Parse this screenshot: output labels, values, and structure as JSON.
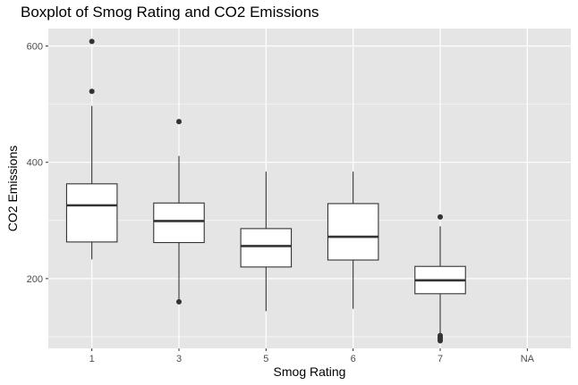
{
  "chart_data": {
    "type": "boxplot",
    "title": "Boxplot of Smog Rating and CO2 Emissions",
    "xlabel": "Smog Rating",
    "ylabel": "CO2 Emissions",
    "categories": [
      "1",
      "3",
      "5",
      "6",
      "7",
      "NA"
    ],
    "y_ticks": [
      200,
      400,
      600
    ],
    "ylim": [
      80,
      630
    ],
    "grid": true,
    "panel_background": "#e5e5e5",
    "gridline_color": "#ffffff",
    "box_fill": "#ffffff",
    "box_stroke": "#333333",
    "point_color": "#333333",
    "boxes": [
      {
        "category": "1",
        "whisker_low": 233,
        "q1": 263,
        "median": 326,
        "q3": 363,
        "whisker_high": 497,
        "outliers": [
          522,
          608
        ]
      },
      {
        "category": "3",
        "whisker_low": 160,
        "q1": 262,
        "median": 299,
        "q3": 330,
        "whisker_high": 411,
        "outliers": [
          160,
          470
        ]
      },
      {
        "category": "5",
        "whisker_low": 144,
        "q1": 220,
        "median": 256,
        "q3": 286,
        "whisker_high": 384,
        "outliers": []
      },
      {
        "category": "6",
        "whisker_low": 148,
        "q1": 232,
        "median": 272,
        "q3": 329,
        "whisker_high": 384,
        "outliers": []
      },
      {
        "category": "7",
        "whisker_low": 104,
        "q1": 174,
        "median": 197,
        "q3": 221,
        "whisker_high": 290,
        "outliers": [
          306,
          93,
          96,
          99,
          102
        ]
      },
      {
        "category": "NA",
        "whisker_low": null,
        "q1": null,
        "median": null,
        "q3": null,
        "whisker_high": null,
        "outliers": []
      }
    ]
  }
}
